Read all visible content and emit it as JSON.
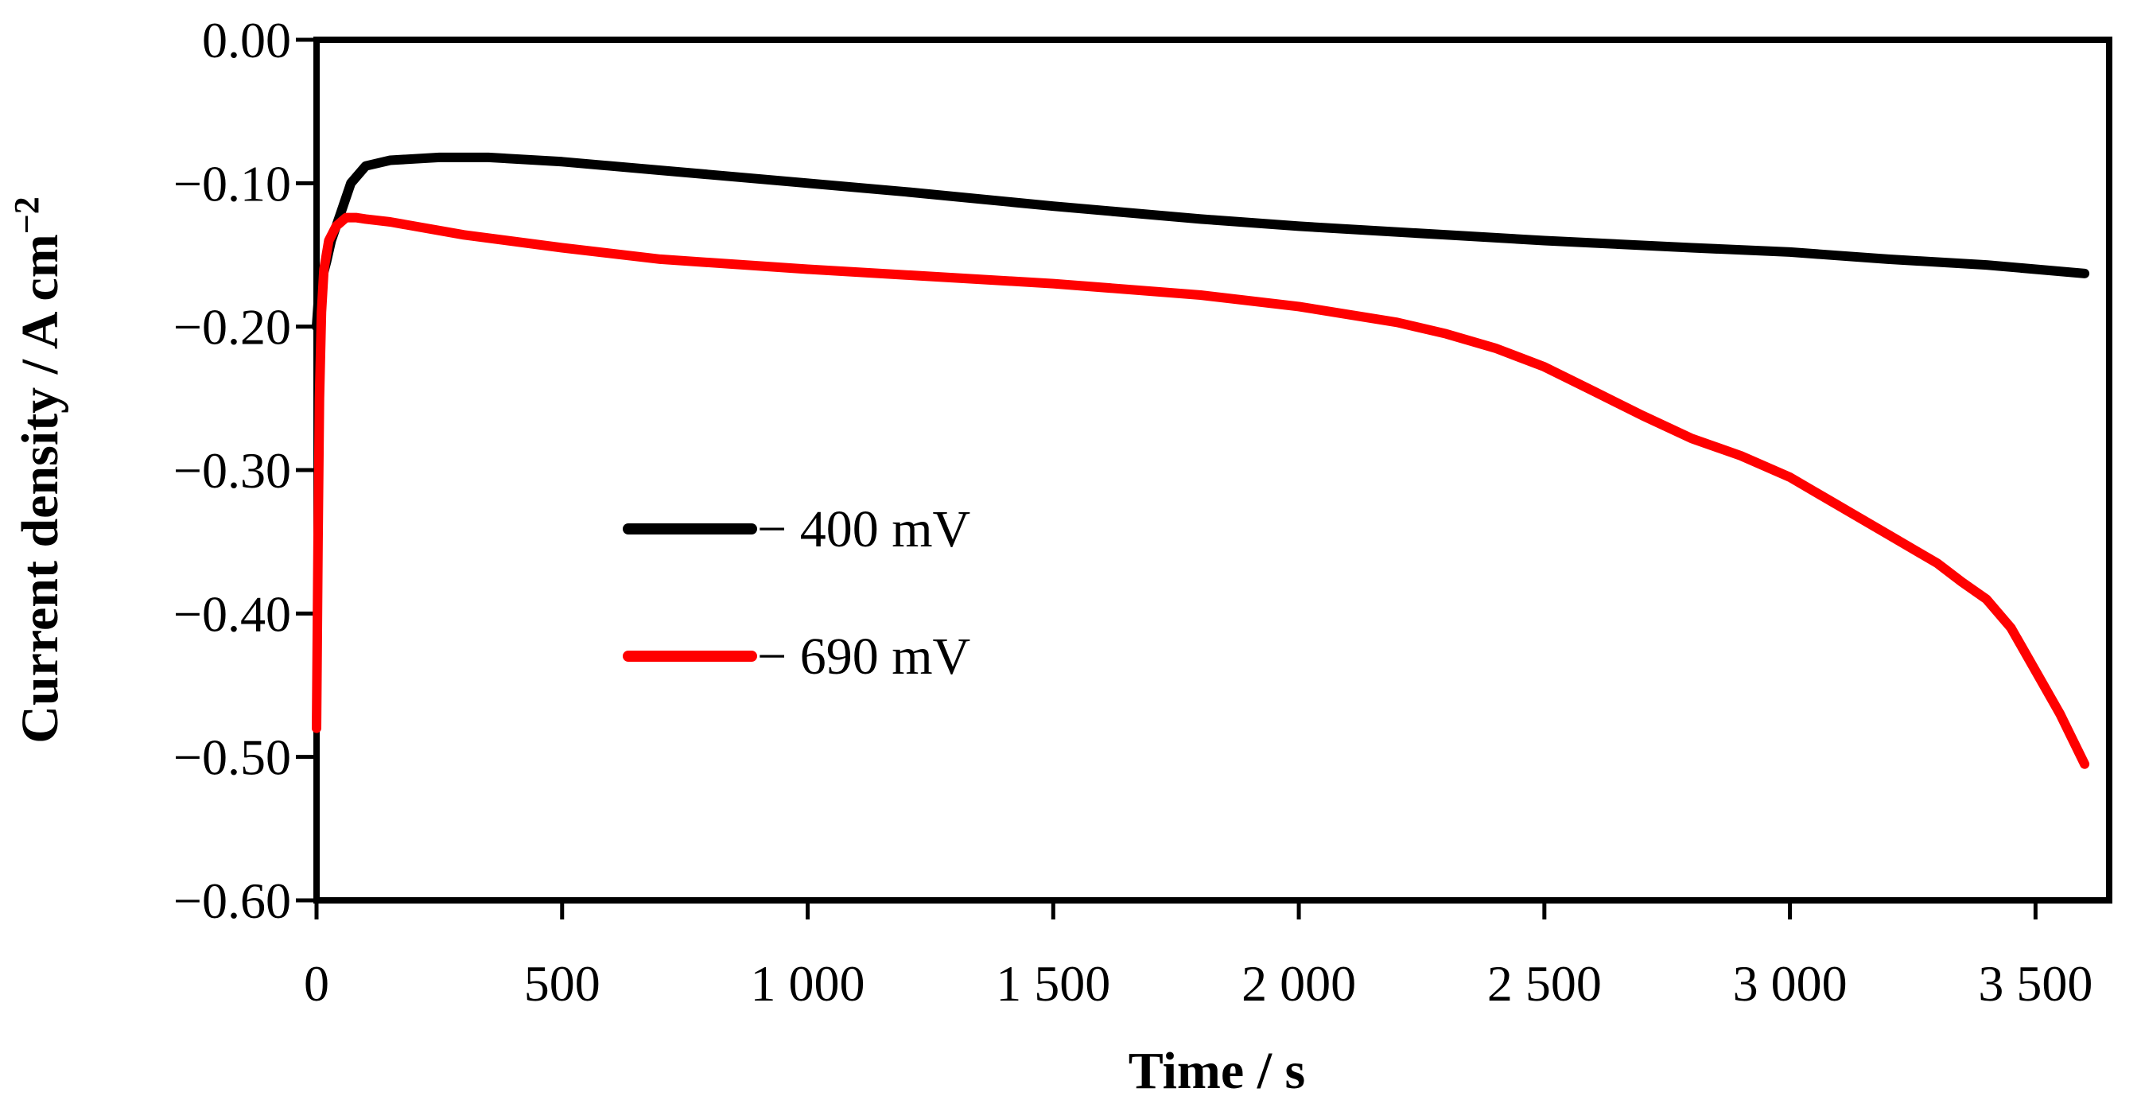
{
  "chart_data": {
    "type": "line",
    "title": "",
    "xlabel": "Time / s",
    "ylabel": "Current density / A cm",
    "ylabel_superscript": "−2",
    "xlim": [
      0,
      3650
    ],
    "ylim": [
      -0.6,
      0.0
    ],
    "x_ticks": [
      0,
      500,
      1000,
      1500,
      2000,
      2500,
      3000,
      3500
    ],
    "x_tick_labels": [
      "0",
      "500",
      "1 000",
      "1 500",
      "2 000",
      "2 500",
      "3 000",
      "3 500"
    ],
    "y_ticks": [
      0.0,
      -0.1,
      -0.2,
      -0.3,
      -0.4,
      -0.5,
      -0.6
    ],
    "y_tick_labels": [
      "0.00",
      "−0.10",
      "−0.20",
      "−0.30",
      "−0.40",
      "−0.50",
      "−0.60"
    ],
    "grid": false,
    "legend_position": "center-left",
    "series": [
      {
        "name": "− 400 mV",
        "color": "#000000",
        "x": [
          0,
          5,
          10,
          20,
          30,
          50,
          70,
          100,
          150,
          250,
          350,
          500,
          700,
          1000,
          1200,
          1500,
          1800,
          2000,
          2300,
          2500,
          2800,
          3000,
          3200,
          3400,
          3600
        ],
        "y": [
          -0.2,
          -0.175,
          -0.168,
          -0.155,
          -0.14,
          -0.12,
          -0.1,
          -0.088,
          -0.084,
          -0.082,
          -0.082,
          -0.085,
          -0.091,
          -0.1,
          -0.106,
          -0.116,
          -0.125,
          -0.13,
          -0.136,
          -0.14,
          -0.145,
          -0.148,
          -0.153,
          -0.157,
          -0.163
        ]
      },
      {
        "name": "− 690 mV",
        "color": "#ff0000",
        "x": [
          0,
          3,
          6,
          10,
          15,
          25,
          40,
          60,
          80,
          100,
          150,
          300,
          500,
          700,
          1000,
          1200,
          1500,
          1800,
          2000,
          2200,
          2300,
          2400,
          2500,
          2600,
          2700,
          2800,
          2900,
          3000,
          3100,
          3200,
          3300,
          3350,
          3400,
          3450,
          3500,
          3550,
          3600
        ],
        "y": [
          -0.48,
          -0.35,
          -0.25,
          -0.19,
          -0.16,
          -0.14,
          -0.13,
          -0.124,
          -0.124,
          -0.125,
          -0.127,
          -0.136,
          -0.145,
          -0.153,
          -0.16,
          -0.164,
          -0.17,
          -0.178,
          -0.186,
          -0.197,
          -0.205,
          -0.215,
          -0.228,
          -0.245,
          -0.262,
          -0.278,
          -0.29,
          -0.305,
          -0.325,
          -0.345,
          -0.365,
          -0.378,
          -0.39,
          -0.41,
          -0.44,
          -0.47,
          -0.505
        ]
      }
    ]
  }
}
